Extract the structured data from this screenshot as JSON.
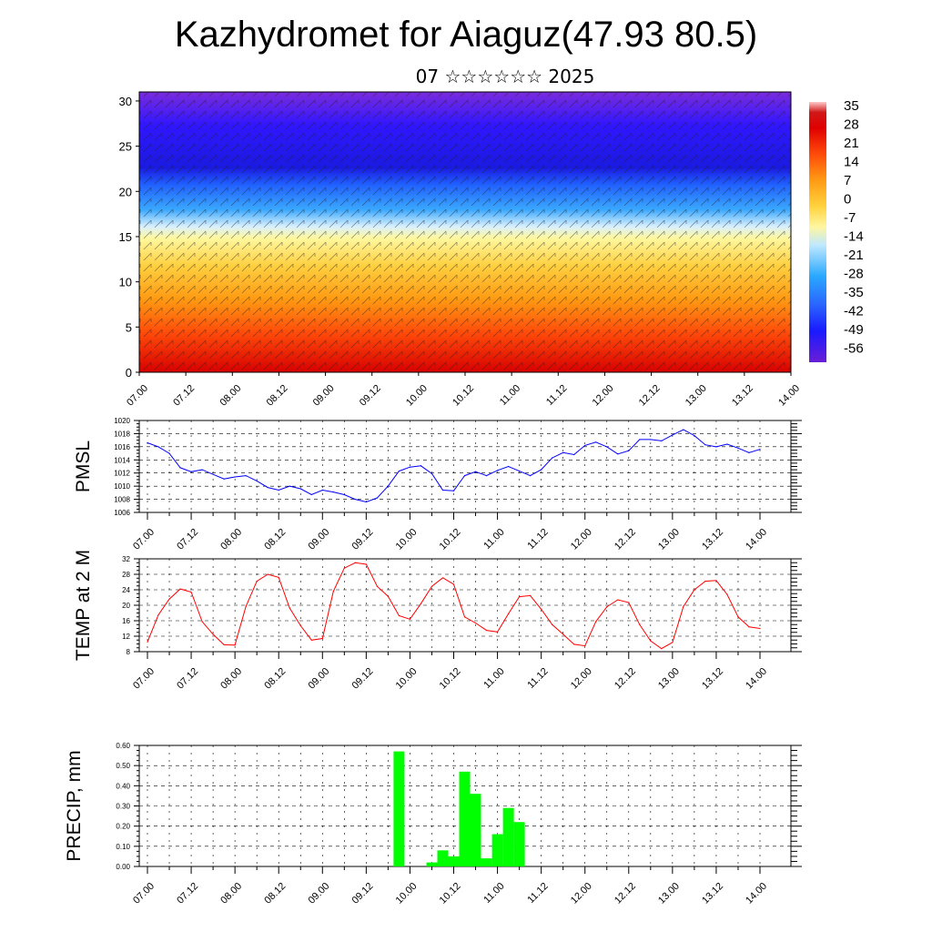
{
  "header": {
    "title": "Kazhydromet for Aiaguz(47.93 80.5)",
    "subtitle": "07 ☆☆☆☆☆☆ 2025"
  },
  "chart_data": [
    {
      "type": "heatmap",
      "description_of_field": "vertical cross-section of temperature with wind barbs",
      "x_tick_labels": [
        "07.00",
        "07.12",
        "08.00",
        "08.12",
        "09.00",
        "09.12",
        "10.00",
        "10.12",
        "11.00",
        "11.12",
        "12.00",
        "12.12",
        "13.00",
        "13.12",
        "14.00"
      ],
      "y_ticks": [
        0,
        5,
        10,
        15,
        20,
        25,
        30
      ],
      "ylim": [
        0,
        31
      ],
      "colorbar": {
        "labels": [
          "35",
          "28",
          "21",
          "14",
          "7",
          "0",
          "-7",
          "-14",
          "-21",
          "-28",
          "-35",
          "-42",
          "-49",
          "-56"
        ],
        "range": [
          -60,
          38
        ]
      }
    },
    {
      "type": "line",
      "ylabel": "PMSL",
      "ylim": [
        1006,
        1020
      ],
      "y_ticks": [
        "1006",
        "1008",
        "1010",
        "1012",
        "1014",
        "1016",
        "1018",
        "1020"
      ],
      "x_tick_labels": [
        "07.00",
        "07.12",
        "08.00",
        "08.12",
        "09.00",
        "09.12",
        "10.00",
        "10.12",
        "11.00",
        "11.12",
        "12.00",
        "12.12",
        "13.00",
        "13.12",
        "14.00"
      ],
      "color": "#0000ff",
      "values": [
        1016.6,
        1016.0,
        1015.0,
        1012.8,
        1012.2,
        1012.5,
        1011.8,
        1011.1,
        1011.4,
        1011.6,
        1010.8,
        1009.8,
        1009.4,
        1010.0,
        1009.6,
        1008.7,
        1009.4,
        1009.1,
        1008.7,
        1008.0,
        1007.6,
        1008.2,
        1010.0,
        1012.3,
        1012.9,
        1013.1,
        1011.9,
        1009.4,
        1009.3,
        1011.6,
        1012.2,
        1011.6,
        1012.4,
        1013.0,
        1012.3,
        1011.6,
        1012.5,
        1014.3,
        1015.1,
        1014.8,
        1016.2,
        1016.7,
        1016.0,
        1014.9,
        1015.4,
        1017.1,
        1017.1,
        1016.9,
        1017.8,
        1018.6,
        1017.7,
        1016.3,
        1016.0,
        1016.4,
        1015.8,
        1015.1,
        1015.6
      ]
    },
    {
      "type": "line",
      "ylabel": "TEMP at 2 M",
      "ylim": [
        8,
        32
      ],
      "y_ticks": [
        "8",
        "12",
        "16",
        "20",
        "24",
        "28",
        "32"
      ],
      "x_tick_labels": [
        "07.00",
        "07.12",
        "08.00",
        "08.12",
        "09.00",
        "09.12",
        "10.00",
        "10.12",
        "11.00",
        "11.12",
        "12.00",
        "12.12",
        "13.00",
        "13.12",
        "14.00"
      ],
      "color": "#ff0000",
      "values": [
        10.5,
        17.5,
        21.6,
        24.2,
        23.4,
        15.8,
        12.5,
        9.8,
        9.7,
        19.7,
        26.2,
        28.0,
        27.2,
        19.3,
        14.7,
        11.0,
        11.4,
        23.6,
        29.6,
        31.0,
        30.6,
        24.9,
        22.3,
        17.3,
        16.4,
        20.4,
        24.9,
        27.1,
        25.4,
        17.0,
        15.4,
        13.5,
        13.1,
        17.8,
        22.2,
        22.5,
        19.0,
        15.0,
        12.5,
        9.9,
        9.5,
        15.8,
        19.6,
        21.4,
        20.7,
        15.0,
        10.8,
        8.8,
        10.4,
        19.7,
        24.0,
        26.2,
        26.4,
        22.8,
        17.0,
        14.4,
        14.0
      ]
    },
    {
      "type": "bar",
      "ylabel": "PRECIP, mm",
      "ylim": [
        0,
        0.6
      ],
      "y_ticks": [
        "0.00",
        "0.10",
        "0.20",
        "0.30",
        "0.40",
        "0.50",
        "0.60"
      ],
      "x_tick_labels": [
        "07.00",
        "07.12",
        "08.00",
        "08.12",
        "09.00",
        "09.12",
        "10.00",
        "10.12",
        "11.00",
        "11.12",
        "12.00",
        "12.12",
        "13.00",
        "13.12",
        "14.00"
      ],
      "color": "#00ff00",
      "x_hours": [
        69,
        78,
        81,
        84,
        87,
        90,
        93,
        96,
        99,
        102
      ],
      "values": [
        0.57,
        0.02,
        0.08,
        0.05,
        0.47,
        0.36,
        0.04,
        0.16,
        0.29,
        0.22
      ]
    }
  ]
}
